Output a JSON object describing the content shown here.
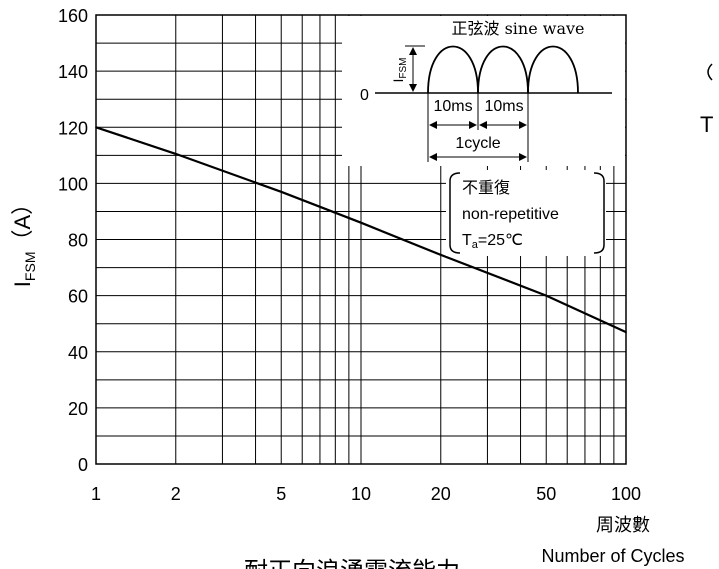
{
  "chart_data": {
    "type": "line",
    "x_scale": "log",
    "xlim": [
      1,
      100
    ],
    "ylim": [
      0,
      160
    ],
    "grid": true,
    "x_ticks": [
      1,
      2,
      5,
      10,
      20,
      50,
      100
    ],
    "x_tick_labels": [
      "1",
      "2",
      "5",
      "10",
      "20",
      "50",
      "100"
    ],
    "y_ticks": [
      0,
      20,
      40,
      60,
      80,
      100,
      120,
      140,
      160
    ],
    "y_tick_labels": [
      "0",
      "20",
      "40",
      "60",
      "80",
      "100",
      "120",
      "140",
      "160"
    ],
    "ylabel_main": "I",
    "ylabel_sub": "FSM",
    "ylabel_unit": "（A）",
    "xlabel_cn": "周波數",
    "xlabel_en": "Number of Cycles",
    "caption_partial": "耐正向浪湧電流能力",
    "series": [
      {
        "x": [
          1,
          2,
          5,
          10,
          20,
          50,
          100
        ],
        "y": [
          120,
          110.5,
          97,
          86,
          74.5,
          60,
          47
        ]
      }
    ]
  },
  "inset": {
    "title": "正弦波 sine wave",
    "axis_label_main": "I",
    "axis_label_sub": "FSM",
    "zero_label": "0",
    "half_period_1": "10ms",
    "half_period_2": "10ms",
    "cycle_label": "1cycle"
  },
  "conditions": {
    "line1": "不重復",
    "line2": "non-repetitive",
    "line3_main": "T",
    "line3_sub": "a",
    "line3_rest": "=25℃"
  },
  "right_edge_text": "T"
}
